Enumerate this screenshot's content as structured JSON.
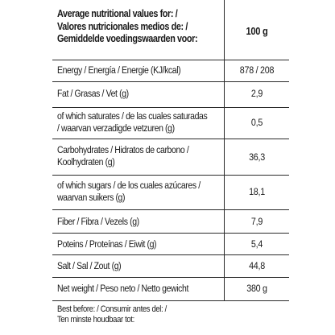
{
  "header": {
    "title_lines": [
      "Average nutritional values for: /",
      "Valores nutricionales medios de: /",
      "Gemiddelde voedingswaarden voor:"
    ],
    "per": "100 g"
  },
  "rows": [
    {
      "label_lines": [
        "Energy / Energía / Energie (KJ/kcal)"
      ],
      "value": "878 / 208"
    },
    {
      "label_lines": [
        "Fat / Grasas / Vet (g)"
      ],
      "value": "2,9"
    },
    {
      "label_lines": [
        "of which saturates / de las cuales saturadas",
        "/ waarvan verzadigde vetzuren (g)"
      ],
      "value": "0,5"
    },
    {
      "label_lines": [
        "Carbohydrates / Hidratos de carbono /",
        "Koolhydraten (g)"
      ],
      "value": "36,3"
    },
    {
      "label_lines": [
        "of which sugars  / de los cuales azúcares /",
        "waarvan suikers (g)"
      ],
      "value": "18,1"
    },
    {
      "label_lines": [
        "Fiber / Fibra / Vezels (g)"
      ],
      "value": "7,9"
    },
    {
      "label_lines": [
        "Poteins / Proteínas / Eiwit (g)"
      ],
      "value": "5,4"
    },
    {
      "label_lines": [
        "Salt / Sal / Zout (g)"
      ],
      "value": "44,8"
    },
    {
      "label_lines": [
        "Net weight / Peso neto / Netto gewicht"
      ],
      "value": "380 g"
    }
  ],
  "footer": {
    "lines": [
      "Best before: / Consumir antes del: /",
      "Ten minste houdbaar tot:"
    ]
  }
}
